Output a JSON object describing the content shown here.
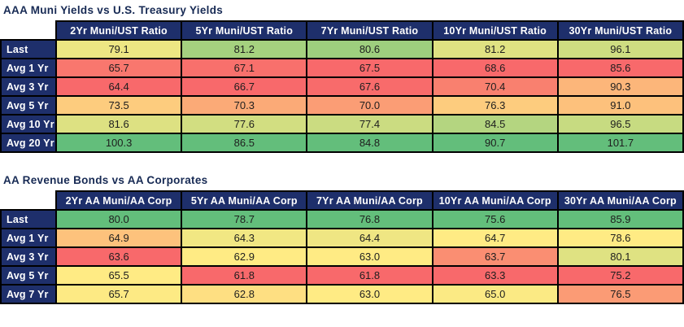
{
  "page": {
    "background": "#ffffff"
  },
  "colors": {
    "title_navy": "#172a54",
    "header_navy": "#1e2f6b",
    "header_text": "#ffffff",
    "grid_border": "#000000",
    "value_text": "#1e1e1e",
    "heat_low_red": "#f8696b",
    "heat_mid_yellow": "#ffeb84",
    "heat_high_green": "#63be7b"
  },
  "chart_data": [
    {
      "type": "heatmap",
      "title": "AAA Muni Yields vs U.S. Treasury Yields",
      "columns": [
        "2Yr Muni/UST Ratio",
        "5Yr Muni/UST Ratio",
        "7Yr Muni/UST Ratio",
        "10Yr Muni/UST Ratio",
        "30Yr Muni/UST Ratio"
      ],
      "rows": [
        "Last",
        "Avg 1 Yr",
        "Avg 3 Yr",
        "Avg 5 Yr",
        "Avg 10 Yr",
        "Avg 20 Yr"
      ],
      "values": [
        [
          79.1,
          81.2,
          80.6,
          81.2,
          96.1
        ],
        [
          65.7,
          67.1,
          67.5,
          68.6,
          85.6
        ],
        [
          64.4,
          66.7,
          67.6,
          70.4,
          90.3
        ],
        [
          73.5,
          70.3,
          70.0,
          76.3,
          91.0
        ],
        [
          81.6,
          77.6,
          77.4,
          84.5,
          96.5
        ],
        [
          100.3,
          86.5,
          84.8,
          90.7,
          101.7
        ]
      ],
      "value_format": "1-decimal",
      "color_scale": {
        "applies": "per-column",
        "low": "#f8696b",
        "mid": "#ffeb84",
        "high": "#63be7b",
        "midpoint": "50th-percentile"
      }
    },
    {
      "type": "heatmap",
      "title": "AA Revenue Bonds vs AA Corporates",
      "columns": [
        "2Yr AA Muni/AA Corp",
        "5Yr AA Muni/AA Corp",
        "7Yr AA Muni/AA Corp",
        "10Yr AA Muni/AA Corp",
        "30Yr AA Muni/AA Corp"
      ],
      "rows": [
        "Last",
        "Avg 1 Yr",
        "Avg 3 Yr",
        "Avg 5 Yr",
        "Avg 7 Yr"
      ],
      "values": [
        [
          80.0,
          78.7,
          76.8,
          75.6,
          85.9
        ],
        [
          64.9,
          64.3,
          64.4,
          64.7,
          78.6
        ],
        [
          63.6,
          62.9,
          63.0,
          63.7,
          80.1
        ],
        [
          65.5,
          61.8,
          61.8,
          63.3,
          75.2
        ],
        [
          65.7,
          62.8,
          63.0,
          65.0,
          76.5
        ]
      ],
      "value_format": "1-decimal",
      "color_scale": {
        "applies": "per-column",
        "low": "#f8696b",
        "mid": "#ffeb84",
        "high": "#63be7b",
        "midpoint": "50th-percentile"
      }
    }
  ]
}
